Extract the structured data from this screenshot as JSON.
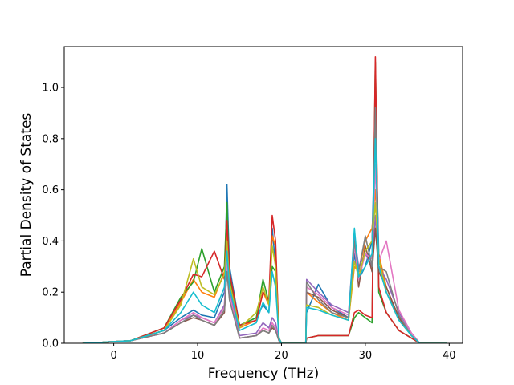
{
  "chart_data": {
    "type": "line",
    "title": "",
    "xlabel": "Frequency (THz)",
    "ylabel": "Partial Density of States",
    "xlim": [
      -5.9,
      41.6
    ],
    "ylim": [
      0,
      1.16
    ],
    "xticks": [
      0,
      10,
      20,
      30,
      40
    ],
    "yticks": [
      0.0,
      0.2,
      0.4,
      0.6,
      0.8,
      1.0
    ],
    "xtick_labels": [
      "0",
      "10",
      "20",
      "30",
      "40"
    ],
    "ytick_labels": [
      "0.0",
      "0.2",
      "0.4",
      "0.6",
      "0.8",
      "1.0"
    ],
    "grid": false,
    "legend": "none",
    "series": [
      {
        "color": "#1f77b4",
        "x": [
          -3.7,
          2,
          6,
          8,
          9.5,
          10.5,
          12,
          13.2,
          13.5,
          13.8,
          15,
          17,
          17.8,
          18.5,
          18.9,
          19.3,
          19.7,
          20,
          22.9,
          23,
          24.4,
          26,
          28,
          28.7,
          29.2,
          30,
          30.8,
          31.2,
          31.6,
          32.5,
          34,
          35.5,
          36.5,
          39.7
        ],
        "y": [
          0,
          0.01,
          0.05,
          0.1,
          0.13,
          0.11,
          0.1,
          0.2,
          0.62,
          0.3,
          0.07,
          0.1,
          0.15,
          0.12,
          0.45,
          0.3,
          0.02,
          0,
          0,
          0.12,
          0.23,
          0.14,
          0.1,
          0.35,
          0.25,
          0.3,
          0.4,
          0.9,
          0.35,
          0.2,
          0.1,
          0.03,
          0,
          0
        ]
      },
      {
        "color": "#ff7f0e",
        "x": [
          -3.7,
          2,
          6,
          8,
          9.5,
          10.5,
          12,
          13.2,
          13.5,
          13.8,
          15,
          17,
          17.8,
          18.5,
          18.9,
          19.3,
          19.7,
          20,
          22.9,
          23,
          24.4,
          26,
          28,
          28.7,
          29.2,
          30,
          30.8,
          31.2,
          31.6,
          32.5,
          34,
          35.5,
          36.5,
          39.7
        ],
        "y": [
          0,
          0.01,
          0.05,
          0.16,
          0.25,
          0.2,
          0.18,
          0.28,
          0.45,
          0.25,
          0.06,
          0.09,
          0.2,
          0.15,
          0.42,
          0.38,
          0.02,
          0,
          0,
          0.2,
          0.16,
          0.12,
          0.09,
          0.3,
          0.28,
          0.4,
          0.45,
          0.6,
          0.35,
          0.22,
          0.1,
          0.03,
          0,
          0
        ]
      },
      {
        "color": "#2ca02c",
        "x": [
          -3.7,
          2,
          6,
          8,
          9.5,
          10.5,
          12,
          13.2,
          13.5,
          13.8,
          15,
          17,
          17.8,
          18.5,
          18.9,
          19.3,
          19.7,
          20,
          22.9,
          23,
          24.4,
          26,
          28,
          28.7,
          29.2,
          30,
          30.8,
          31.2,
          31.6,
          32.5,
          34,
          35.5,
          36.5,
          39.7
        ],
        "y": [
          0,
          0.01,
          0.06,
          0.18,
          0.24,
          0.37,
          0.2,
          0.3,
          0.55,
          0.26,
          0.07,
          0.1,
          0.25,
          0.16,
          0.3,
          0.28,
          0.02,
          0,
          0,
          0.02,
          0.03,
          0.03,
          0.03,
          0.1,
          0.12,
          0.1,
          0.08,
          1.1,
          0.2,
          0.12,
          0.05,
          0.02,
          0,
          0
        ]
      },
      {
        "color": "#d62728",
        "x": [
          -3.7,
          2,
          6,
          8,
          9.5,
          10.5,
          12,
          13.2,
          13.5,
          13.8,
          15,
          17,
          17.8,
          18.5,
          18.9,
          19.3,
          19.7,
          20,
          22.9,
          23,
          24.4,
          26,
          28,
          28.7,
          29.2,
          30,
          30.8,
          31.2,
          31.6,
          32.5,
          34,
          35.5,
          36.5,
          39.7
        ],
        "y": [
          0,
          0.01,
          0.06,
          0.17,
          0.27,
          0.26,
          0.36,
          0.25,
          0.48,
          0.28,
          0.07,
          0.09,
          0.2,
          0.17,
          0.5,
          0.4,
          0.02,
          0,
          0,
          0.02,
          0.03,
          0.03,
          0.03,
          0.12,
          0.13,
          0.11,
          0.1,
          1.12,
          0.22,
          0.12,
          0.05,
          0.02,
          0,
          0
        ]
      },
      {
        "color": "#9467bd",
        "x": [
          -3.7,
          2,
          6,
          8,
          9.5,
          10.5,
          12,
          13.2,
          13.5,
          13.8,
          15,
          17,
          17.8,
          18.5,
          18.9,
          19.3,
          19.7,
          20,
          22.9,
          23,
          24.4,
          26,
          28,
          28.7,
          29.2,
          30,
          30.8,
          31.2,
          31.6,
          32.5,
          34,
          35.5,
          36.5,
          39.7
        ],
        "y": [
          0,
          0.01,
          0.04,
          0.09,
          0.11,
          0.1,
          0.08,
          0.15,
          0.35,
          0.2,
          0.03,
          0.04,
          0.08,
          0.06,
          0.1,
          0.08,
          0.01,
          0,
          0,
          0.25,
          0.2,
          0.15,
          0.12,
          0.42,
          0.3,
          0.35,
          0.3,
          0.5,
          0.3,
          0.25,
          0.12,
          0.04,
          0,
          0
        ]
      },
      {
        "color": "#8c564b",
        "x": [
          -3.7,
          2,
          6,
          8,
          9.5,
          10.5,
          12,
          13.2,
          13.5,
          13.8,
          15,
          17,
          17.8,
          18.5,
          18.9,
          19.3,
          19.7,
          20,
          22.9,
          23,
          24.4,
          26,
          28,
          28.7,
          29.2,
          30,
          30.8,
          31.2,
          31.6,
          32.5,
          34,
          35.5,
          36.5,
          39.7
        ],
        "y": [
          0,
          0.01,
          0.04,
          0.08,
          0.1,
          0.09,
          0.07,
          0.12,
          0.3,
          0.18,
          0.02,
          0.03,
          0.05,
          0.04,
          0.06,
          0.05,
          0.01,
          0,
          0,
          0.2,
          0.18,
          0.13,
          0.1,
          0.4,
          0.22,
          0.38,
          0.28,
          0.45,
          0.28,
          0.22,
          0.1,
          0.03,
          0,
          0
        ]
      },
      {
        "color": "#e377c2",
        "x": [
          -3.7,
          2,
          6,
          8,
          9.5,
          10.5,
          12,
          13.2,
          13.5,
          13.8,
          15,
          17,
          17.8,
          18.5,
          18.9,
          19.3,
          19.7,
          20,
          22.9,
          23,
          24.4,
          26,
          28,
          28.7,
          29.2,
          30,
          30.8,
          31.2,
          31.6,
          32.5,
          34,
          35.5,
          36.5,
          39.7
        ],
        "y": [
          0,
          0.01,
          0.04,
          0.09,
          0.12,
          0.1,
          0.08,
          0.14,
          0.32,
          0.19,
          0.02,
          0.03,
          0.06,
          0.05,
          0.08,
          0.06,
          0.01,
          0,
          0,
          0.22,
          0.19,
          0.14,
          0.11,
          0.38,
          0.25,
          0.35,
          0.33,
          0.7,
          0.32,
          0.4,
          0.13,
          0.04,
          0,
          0
        ]
      },
      {
        "color": "#7f7f7f",
        "x": [
          -3.7,
          2,
          6,
          8,
          9.5,
          10.5,
          12,
          13.2,
          13.5,
          13.8,
          15,
          17,
          17.8,
          18.5,
          18.9,
          19.3,
          19.7,
          20,
          22.9,
          23,
          24.4,
          26,
          28,
          28.7,
          29.2,
          30,
          30.8,
          31.2,
          31.6,
          32.5,
          34,
          35.5,
          36.5,
          39.7
        ],
        "y": [
          0,
          0.01,
          0.04,
          0.08,
          0.11,
          0.09,
          0.07,
          0.13,
          0.28,
          0.17,
          0.02,
          0.03,
          0.05,
          0.04,
          0.07,
          0.05,
          0.01,
          0,
          0,
          0.24,
          0.17,
          0.12,
          0.1,
          0.4,
          0.28,
          0.42,
          0.3,
          0.92,
          0.3,
          0.28,
          0.11,
          0.03,
          0,
          0
        ]
      },
      {
        "color": "#bcbd22",
        "x": [
          -3.7,
          2,
          6,
          8,
          9.5,
          10.5,
          12,
          13.2,
          13.5,
          13.8,
          15,
          17,
          17.8,
          18.5,
          18.9,
          19.3,
          19.7,
          20,
          22.9,
          23,
          24.4,
          26,
          28,
          28.7,
          29.2,
          30,
          30.8,
          31.2,
          31.6,
          32.5,
          34,
          35.5,
          36.5,
          39.7
        ],
        "y": [
          0,
          0.01,
          0.05,
          0.15,
          0.33,
          0.22,
          0.19,
          0.27,
          0.4,
          0.24,
          0.06,
          0.12,
          0.22,
          0.15,
          0.38,
          0.3,
          0.02,
          0,
          0,
          0.15,
          0.14,
          0.11,
          0.09,
          0.32,
          0.26,
          0.36,
          0.4,
          0.55,
          0.33,
          0.2,
          0.09,
          0.03,
          0,
          0
        ]
      },
      {
        "color": "#17becf",
        "x": [
          -3.7,
          2,
          6,
          8,
          9.5,
          10.5,
          12,
          13.2,
          13.5,
          13.8,
          15,
          17,
          17.8,
          18.5,
          18.9,
          19.3,
          19.7,
          20,
          22.9,
          23,
          24.4,
          26,
          28,
          28.7,
          29.2,
          30,
          30.8,
          31.2,
          31.6,
          32.5,
          34,
          35.5,
          36.5,
          39.7
        ],
        "y": [
          0,
          0.01,
          0.05,
          0.12,
          0.2,
          0.15,
          0.12,
          0.22,
          0.36,
          0.22,
          0.05,
          0.08,
          0.16,
          0.12,
          0.28,
          0.22,
          0.02,
          0,
          0,
          0.14,
          0.13,
          0.11,
          0.09,
          0.45,
          0.26,
          0.3,
          0.35,
          0.8,
          0.3,
          0.2,
          0.09,
          0.03,
          0,
          0
        ]
      }
    ]
  }
}
